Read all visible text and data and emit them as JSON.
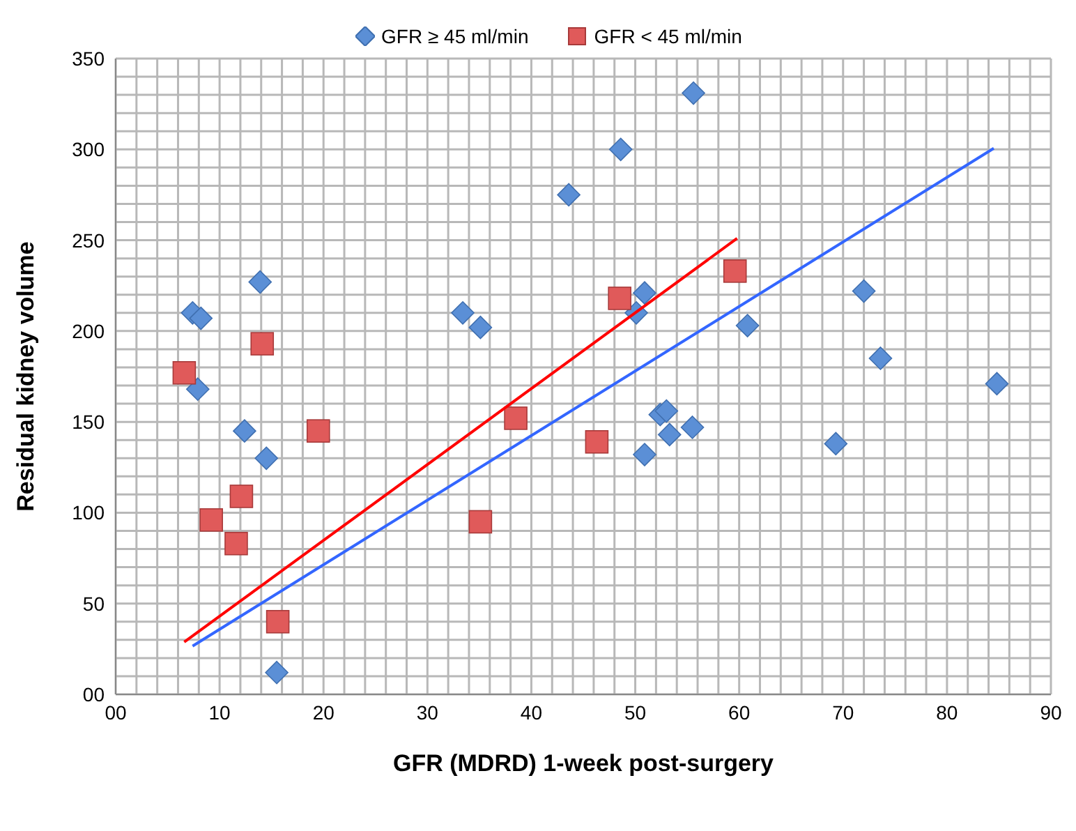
{
  "chart_data": {
    "type": "scatter",
    "xlabel": "GFR (MDRD) 1-week post-surgery",
    "ylabel": "Residual kidney volume",
    "xlim": [
      0,
      90
    ],
    "xticks": [
      {
        "value": 0,
        "label": "00"
      },
      {
        "value": 2,
        "label": null
      },
      {
        "value": 4,
        "label": null
      },
      {
        "value": 6,
        "label": null
      },
      {
        "value": 8,
        "label": null
      },
      10,
      {
        "value": 12,
        "label": null
      },
      {
        "value": 14,
        "label": null
      },
      {
        "value": 16,
        "label": null
      },
      {
        "value": 18,
        "label": null
      },
      20,
      {
        "value": 22,
        "label": null
      },
      {
        "value": 24,
        "label": null
      },
      {
        "value": 26,
        "label": null
      },
      {
        "value": 28,
        "label": null
      },
      30,
      {
        "value": 32,
        "label": null
      },
      {
        "value": 34,
        "label": null
      },
      {
        "value": 36,
        "label": null
      },
      {
        "value": 38,
        "label": null
      },
      40,
      {
        "value": 42,
        "label": null
      },
      {
        "value": 44,
        "label": null
      },
      {
        "value": 46,
        "label": null
      },
      {
        "value": 48,
        "label": null
      },
      50,
      {
        "value": 52,
        "label": null
      },
      {
        "value": 54,
        "label": null
      },
      {
        "value": 56,
        "label": null
      },
      {
        "value": 58,
        "label": null
      },
      60,
      {
        "value": 62,
        "label": null
      },
      {
        "value": 64,
        "label": null
      },
      {
        "value": 66,
        "label": null
      },
      {
        "value": 68,
        "label": null
      },
      70,
      {
        "value": 72,
        "label": null
      },
      {
        "value": 74,
        "label": null
      },
      {
        "value": 76,
        "label": null
      },
      {
        "value": 78,
        "label": null
      },
      80,
      {
        "value": 82,
        "label": null
      },
      {
        "value": 84,
        "label": null
      },
      {
        "value": 86,
        "label": null
      },
      {
        "value": 88,
        "label": null
      },
      90
    ],
    "ylim": [
      0,
      350
    ],
    "yticks": [
      {
        "value": 0,
        "label": "00"
      },
      {
        "value": 10,
        "label": null
      },
      {
        "value": 20,
        "label": null
      },
      {
        "value": 30,
        "label": null
      },
      {
        "value": 40,
        "label": null
      },
      50,
      {
        "value": 60,
        "label": null
      },
      {
        "value": 70,
        "label": null
      },
      {
        "value": 80,
        "label": null
      },
      {
        "value": 90,
        "label": null
      },
      100,
      {
        "value": 110,
        "label": null
      },
      {
        "value": 120,
        "label": null
      },
      {
        "value": 130,
        "label": null
      },
      {
        "value": 140,
        "label": null
      },
      150,
      {
        "value": 160,
        "label": null
      },
      {
        "value": 170,
        "label": null
      },
      {
        "value": 180,
        "label": null
      },
      {
        "value": 190,
        "label": null
      },
      200,
      {
        "value": 210,
        "label": null
      },
      {
        "value": 220,
        "label": null
      },
      {
        "value": 230,
        "label": null
      },
      {
        "value": 240,
        "label": null
      },
      250,
      {
        "value": 260,
        "label": null
      },
      {
        "value": 270,
        "label": null
      },
      {
        "value": 280,
        "label": null
      },
      {
        "value": 290,
        "label": null
      },
      300,
      {
        "value": 310,
        "label": null
      },
      {
        "value": 320,
        "label": null
      },
      {
        "value": 330,
        "label": null
      },
      {
        "value": 340,
        "label": null
      },
      350
    ],
    "grid": true,
    "legend": "top",
    "series": [
      {
        "name": "GFR ≥ 45 ml/min",
        "color": "#5b8fd6",
        "marker": "diamond",
        "x": [
          13.9,
          7.4,
          8.2,
          7.9,
          12.4,
          14.5,
          15.5,
          55.6,
          48.6,
          43.6,
          33.4,
          35.1,
          50.9,
          50.1,
          60.8,
          52.4,
          53.0,
          53.3,
          55.5,
          50.9,
          72.0,
          73.6,
          84.8,
          69.3
        ],
        "values": [
          227,
          210,
          207,
          168,
          145,
          130,
          12,
          331,
          300,
          275,
          210,
          202,
          221,
          210,
          203,
          154,
          156,
          143,
          147,
          132,
          222,
          185,
          171,
          138
        ]
      },
      {
        "name": "GFR < 45 ml/min",
        "color": "#e05a5a",
        "marker": "square",
        "x": [
          14.1,
          6.6,
          19.5,
          12.1,
          9.2,
          11.6,
          15.6,
          48.5,
          59.6,
          38.5,
          46.3,
          35.1
        ],
        "values": [
          193,
          177,
          145,
          109,
          96,
          83,
          40,
          218,
          233,
          152,
          139,
          95
        ]
      },
      {
        "type": "line",
        "color": "#ff0000",
        "marker": "none",
        "x": [
          6.6,
          59.8
        ],
        "values": [
          28.8,
          251
        ]
      },
      {
        "type": "line",
        "color": "#3366ff",
        "marker": "none",
        "x": [
          7.4,
          84.5
        ],
        "values": [
          26.6,
          300.6
        ]
      }
    ]
  }
}
